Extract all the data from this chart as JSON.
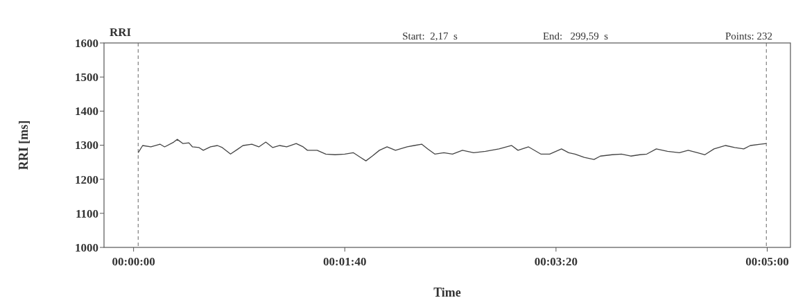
{
  "chart_data": {
    "type": "line",
    "title": "RRI",
    "xlabel": "Time",
    "ylabel": "RRI [ms]",
    "annotations": [
      "Start:  2,17  s",
      "End:   299,59  s",
      "Points: 232"
    ],
    "x": [
      2.17,
      4.3,
      8.2,
      12.5,
      14.7,
      19,
      20.7,
      23.3,
      26.2,
      27.9,
      31,
      33,
      36.4,
      39.7,
      42,
      45.9,
      49.5,
      51.8,
      56,
      59.3,
      62.6,
      65.9,
      69.2,
      72.5,
      77,
      80.3,
      82.3,
      86.9,
      91,
      95.4,
      100,
      104,
      107.5,
      110,
      113,
      116.4,
      120,
      124,
      129.5,
      132.8,
      136.4,
      139.3,
      142.6,
      146.9,
      151,
      155.7,
      161,
      166.6,
      173,
      179,
      182,
      187,
      192.8,
      197,
      202.6,
      206,
      209,
      213.4,
      218,
      221,
      226.6,
      231,
      235.4,
      239.7,
      243,
      247.5,
      252.8,
      258.4,
      262.6,
      267,
      270.5,
      274.8,
      280.3,
      284.6,
      288.9,
      292,
      296.7,
      299.59
    ],
    "series": [
      {
        "color": "#444444",
        "values": [
          1278,
          1299,
          1295,
          1303,
          1295,
          1309,
          1317,
          1305,
          1307,
          1295,
          1293,
          1285,
          1295,
          1299,
          1293,
          1274,
          1289,
          1299,
          1303,
          1295,
          1309,
          1293,
          1299,
          1295,
          1305,
          1295,
          1285,
          1285,
          1274,
          1272,
          1274,
          1278,
          1264,
          1254,
          1268,
          1285,
          1295,
          1285,
          1295,
          1299,
          1303,
          1289,
          1274,
          1278,
          1274,
          1285,
          1278,
          1282,
          1289,
          1299,
          1285,
          1295,
          1274,
          1274,
          1289,
          1278,
          1274,
          1264,
          1258,
          1268,
          1272,
          1274,
          1268,
          1272,
          1274,
          1289,
          1282,
          1278,
          1285,
          1278,
          1272,
          1289,
          1299,
          1293,
          1289,
          1299,
          1303,
          1305
        ]
      }
    ],
    "xlim": [
      -14,
      311
    ],
    "ylim": [
      1000,
      1600
    ],
    "xticks": [
      {
        "value": 0,
        "label": "00:00:00"
      },
      {
        "value": 100,
        "label": "00:01:40"
      },
      {
        "value": 200,
        "label": "00:03:20"
      },
      {
        "value": 300,
        "label": "00:05:00"
      }
    ],
    "yticks": [
      1000,
      1100,
      1200,
      1300,
      1400,
      1500,
      1600
    ],
    "ref_lines": [
      {
        "axis": "x",
        "value": 2.17,
        "color": "#666666",
        "line_style": "dashed"
      },
      {
        "axis": "x",
        "value": 299.59,
        "color": "#666666",
        "line_style": "dashed"
      }
    ],
    "grid": false,
    "marker": "none",
    "line_style": "solid"
  }
}
